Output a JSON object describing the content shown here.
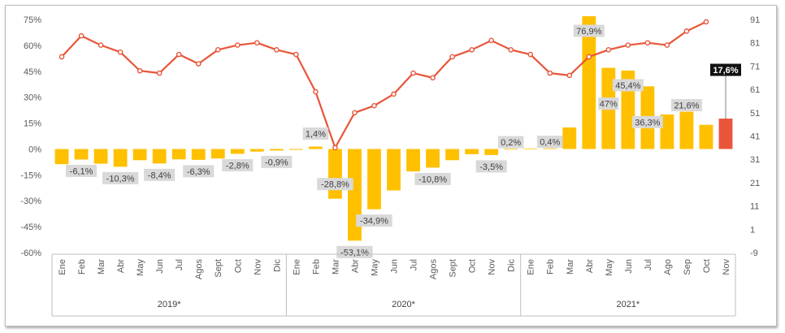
{
  "chart_data": {
    "type": "bar",
    "title": "",
    "xlabel": "",
    "ylabel": "",
    "ylim": [
      -60,
      75
    ],
    "y_ticks": [
      "75%",
      "60%",
      "45%",
      "30%",
      "15%",
      "0%",
      "-15%",
      "-30%",
      "-45%",
      "-60%"
    ],
    "y2lim": [
      -9,
      91
    ],
    "y2_ticks": [
      "91",
      "81",
      "71",
      "61",
      "51",
      "41",
      "31",
      "21",
      "11",
      "1",
      "-9"
    ],
    "grid": false,
    "legend": "none",
    "groups": [
      {
        "label": "2019*",
        "months": [
          "Ene",
          "Feb",
          "Mar",
          "Abr",
          "May",
          "Jun",
          "Jul",
          "Agos",
          "Sept",
          "Oct",
          "Nov",
          "Dic"
        ]
      },
      {
        "label": "2020*",
        "months": [
          "Ene",
          "Feb",
          "Mar",
          "Abr",
          "May",
          "Jun",
          "Jul",
          "Agos",
          "Sept",
          "Oct",
          "Nov",
          "Dic"
        ]
      },
      {
        "label": "2021*",
        "months": [
          "Ene",
          "Feb",
          "Mar",
          "Abr",
          "May",
          "Jun",
          "Jul",
          "Ago",
          "Sep",
          "Oct",
          "Nov"
        ]
      }
    ],
    "series": [
      {
        "type": "bar",
        "axis": "left",
        "color": "#FFC000",
        "highlight_color": "#E8553A",
        "highlight_index": 34,
        "values": [
          -8.8,
          -6.1,
          -8.5,
          -10.3,
          -6.5,
          -8.4,
          -6.0,
          -6.3,
          -5.5,
          -2.8,
          -1.5,
          -0.9,
          -0.5,
          1.4,
          -28.8,
          -53.1,
          -34.9,
          -24.0,
          -13.0,
          -10.8,
          -6.5,
          -3.0,
          -3.5,
          0.2,
          0.3,
          0.4,
          12.5,
          76.9,
          47.0,
          45.4,
          36.3,
          20.0,
          21.6,
          14.0,
          17.6
        ],
        "data_labels": [
          {
            "index": 1,
            "text": "-6,1%"
          },
          {
            "index": 3,
            "text": "-10,3%"
          },
          {
            "index": 5,
            "text": "-8,4%"
          },
          {
            "index": 7,
            "text": "-6,3%"
          },
          {
            "index": 9,
            "text": "-2,8%"
          },
          {
            "index": 11,
            "text": "-0,9%"
          },
          {
            "index": 13,
            "text": "1,4%"
          },
          {
            "index": 14,
            "text": "-28,8%"
          },
          {
            "index": 15,
            "text": "-53,1%"
          },
          {
            "index": 16,
            "text": "-34,9%"
          },
          {
            "index": 19,
            "text": "-10,8%"
          },
          {
            "index": 22,
            "text": "-3,5%"
          },
          {
            "index": 23,
            "text": "0,2%"
          },
          {
            "index": 25,
            "text": "0,4%"
          },
          {
            "index": 27,
            "text": "76,9%"
          },
          {
            "index": 28,
            "text": "47%"
          },
          {
            "index": 29,
            "text": "45,4%"
          },
          {
            "index": 30,
            "text": "36,3%"
          },
          {
            "index": 32,
            "text": "21,6%"
          },
          {
            "index": 34,
            "text": "17,6%"
          }
        ]
      },
      {
        "type": "line",
        "axis": "right",
        "color": "#E8553A",
        "values": [
          75,
          84,
          80,
          77,
          69,
          68,
          76,
          72,
          78,
          80,
          81,
          78,
          76,
          60,
          36,
          51,
          54,
          59,
          68,
          66,
          75,
          78,
          82,
          78,
          76,
          68,
          67,
          75,
          78,
          80,
          81,
          80,
          86,
          90
        ]
      }
    ]
  }
}
